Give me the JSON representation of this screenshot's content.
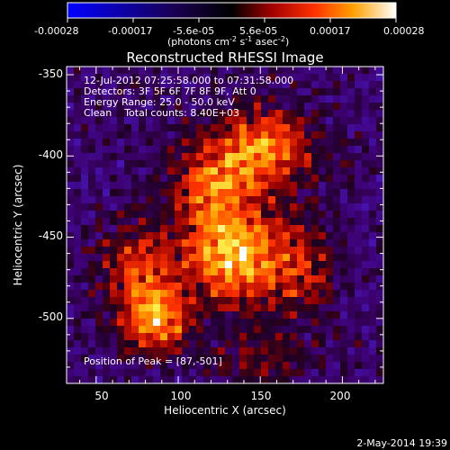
{
  "colorbar": {
    "ticks": [
      "-0.00028",
      "-0.00017",
      "-5.6e-05",
      "5.6e-05",
      "0.00017",
      "0.00028"
    ],
    "unit_label": "(photons cm",
    "unit_exp1": "-2",
    "unit_mid": " s",
    "unit_exp2": "-1",
    "unit_mid2": " asec",
    "unit_exp3": "-2",
    "unit_end": ")",
    "vmin": -0.00028,
    "vmax": 0.00028,
    "colormap": "blue-black-red-yellow-white"
  },
  "plot": {
    "title": "Reconstructed RHESSI Image",
    "xlabel": "Heliocentric X (arcsec)",
    "ylabel": "Heliocentric Y (arcsec)",
    "xticks": [
      "50",
      "100",
      "150",
      "200"
    ],
    "yticks": [
      "-350",
      "-400",
      "-450",
      "-500"
    ]
  },
  "annotations": {
    "time": "12-Jul-2012 07:25:58.000 to 07:31:58.000",
    "detectors": "Detectors: 3F 5F 6F 7F 8F 9F, Att 0",
    "energy": "Energy Range: 25.0 - 50.0 keV",
    "clean": "Clean    Total counts: 8.40E+03",
    "peak": "Position of Peak = [87,-501]"
  },
  "footer": {
    "date": "2-May-2014 19:39"
  },
  "chart_data": {
    "type": "heatmap",
    "title": "Reconstructed RHESSI Image",
    "xlabel": "Heliocentric X (arcsec)",
    "ylabel": "Heliocentric Y (arcsec)",
    "xlim": [
      32,
      225
    ],
    "ylim": [
      -540,
      -345
    ],
    "colorbar_range": [
      -0.00028,
      0.00028
    ],
    "sources": [
      {
        "x": 133,
        "y": -460,
        "sx": 22,
        "sy": 22,
        "intensity": 1.0
      },
      {
        "x": 150,
        "y": -395,
        "sx": 24,
        "sy": 16,
        "intensity": 0.85
      },
      {
        "x": 87,
        "y": -501,
        "sx": 14,
        "sy": 14,
        "intensity": 0.85
      },
      {
        "x": 75,
        "y": -470,
        "sx": 16,
        "sy": 20,
        "intensity": 0.55
      },
      {
        "x": 120,
        "y": -420,
        "sx": 18,
        "sy": 14,
        "intensity": 0.6
      },
      {
        "x": 175,
        "y": -470,
        "sx": 14,
        "sy": 22,
        "intensity": 0.45
      },
      {
        "x": 150,
        "y": -525,
        "sx": 20,
        "sy": 10,
        "intensity": 0.35
      }
    ],
    "peak": [
      87,
      -501
    ]
  }
}
